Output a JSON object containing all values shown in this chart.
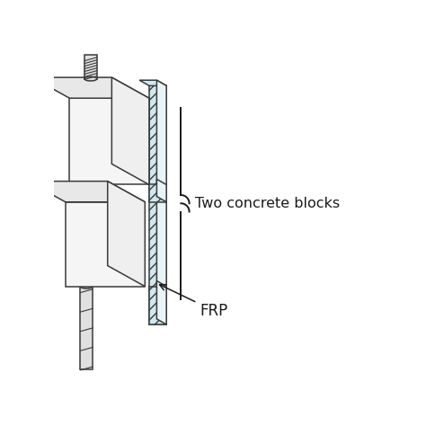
{
  "bg_color": "#ffffff",
  "line_color": "#3a3a3a",
  "frp_fill": "#d0e8f0",
  "frp_hatch": "///",
  "text_color": "#1a1a1a",
  "label_two_blocks": "Two concrete blocks",
  "label_frp": "FRP",
  "figsize": [
    4.74,
    4.74
  ],
  "dpi": 100,
  "block_face_color": "#f5f5f5",
  "block_top_color": "#e8e8e8",
  "block_side_color": "#efefef",
  "rod_color": "#e0e0e0"
}
